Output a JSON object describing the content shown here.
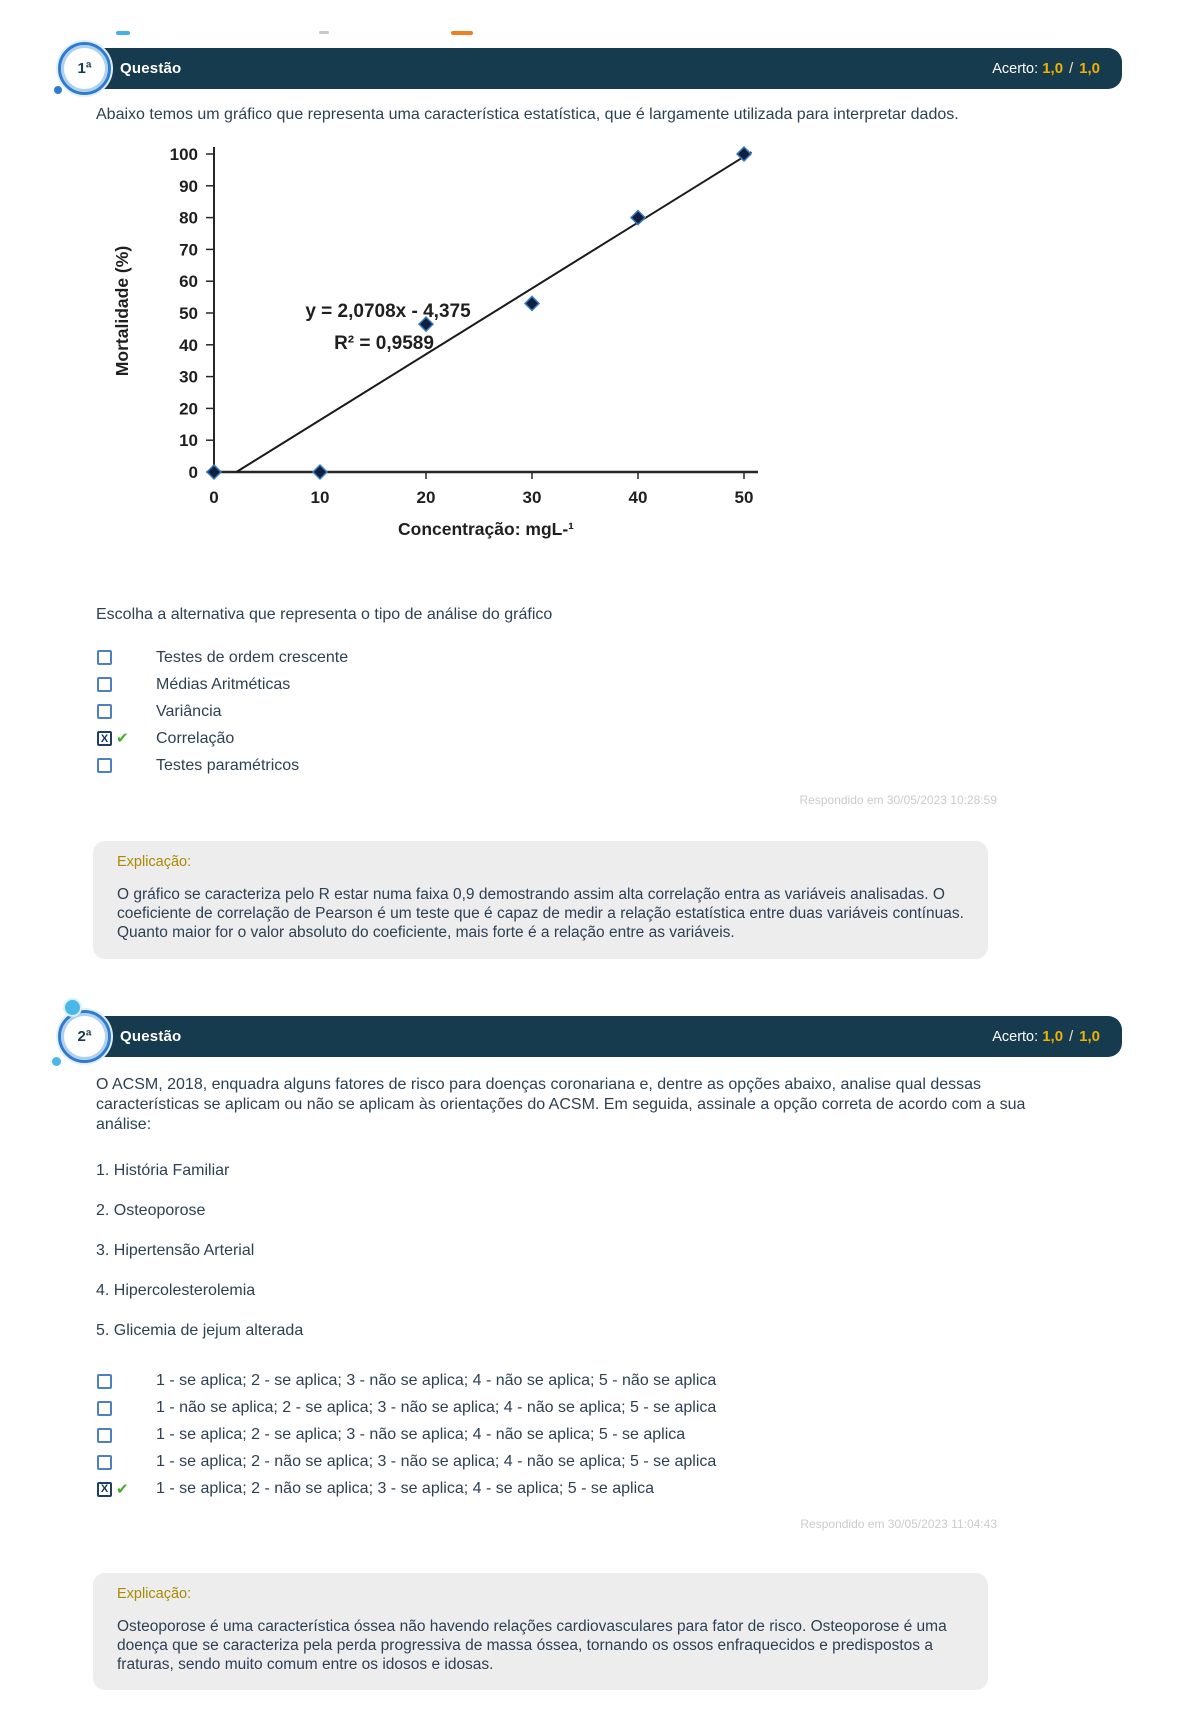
{
  "icons": {
    "x_mark": "X",
    "check_mark": "✔"
  },
  "questions": {
    "q1": {
      "badge": "1ª",
      "title": "Questão",
      "score_label": "Acerto:",
      "score_left": "1,0",
      "score_sep": "/",
      "score_right": "1,0",
      "prompt": "Abaixo temos um gráfico que representa uma característica estatística, que é largamente utilizada para interpretar dados.",
      "choose_label": "Escolha a alternativa que representa o tipo de análise do gráfico",
      "options": [
        {
          "label": "Testes de ordem crescente",
          "selected": false
        },
        {
          "label": "Médias Aritméticas",
          "selected": false
        },
        {
          "label": "Variância",
          "selected": false
        },
        {
          "label": "Correlação",
          "selected": true
        },
        {
          "label": "Testes paramétricos",
          "selected": false
        }
      ],
      "answered": "Respondido em 30/05/2023 10:28:59",
      "explanation_title": "Explicação:",
      "explanation_body": "O gráfico se caracteriza pelo R estar numa faixa 0,9 demostrando assim alta correlação entra as variáveis analisadas. O coeficiente de correlação de Pearson é um teste que é capaz de medir a relação estatística entre duas variáveis contínuas. Quanto maior for o valor absoluto do coeficiente, mais forte é a relação entre as variáveis."
    },
    "q2": {
      "badge": "2ª",
      "title": "Questão",
      "score_label": "Acerto:",
      "score_left": "1,0",
      "score_sep": "/",
      "score_right": "1,0",
      "prompt": "O ACSM, 2018, enquadra alguns fatores de risco para doenças coronariana e, dentre as opções abaixo, analise qual dessas características se aplicam ou não se aplicam às orientações do ACSM. Em seguida, assinale a opção correta de acordo com a sua análise:",
      "list_items": [
        "1. História Familiar",
        "2. Osteoporose",
        "3. Hipertensão Arterial",
        "4. Hipercolesterolemia",
        "5. Glicemia de jejum alterada"
      ],
      "options": [
        {
          "label": "1 - se aplica; 2 - se aplica; 3 - não se aplica; 4 - não se aplica; 5 - não se aplica",
          "selected": false
        },
        {
          "label": "1 - não se aplica; 2 - se aplica; 3 - não se aplica; 4 - não se aplica; 5 - se aplica",
          "selected": false
        },
        {
          "label": "1 - se aplica; 2 - se aplica; 3 - não se aplica; 4 - não se aplica; 5 - se aplica",
          "selected": false
        },
        {
          "label": "1 - se aplica; 2 - não se aplica; 3 - não se aplica; 4 - não se aplica; 5 - se aplica",
          "selected": false
        },
        {
          "label": "1 - se aplica; 2 - não se aplica; 3 - se aplica; 4 - se aplica; 5 - se aplica",
          "selected": true
        }
      ],
      "answered": "Respondido em 30/05/2023 11:04:43",
      "explanation_title": "Explicação:",
      "explanation_body": "Osteoporose é uma característica óssea não havendo relações cardiovasculares para fator de risco. Osteoporose é uma doença que se caracteriza pela perda progressiva de massa óssea, tornando os ossos enfraquecidos e predispostos a fraturas, sendo muito comum entre os idosos e idosas."
    }
  },
  "chart_data": {
    "type": "scatter",
    "x": [
      0,
      10,
      20,
      30,
      40,
      50
    ],
    "y": [
      0,
      0,
      46.5,
      53,
      80,
      100
    ],
    "xlabel": "Concentração: mgL-¹",
    "ylabel": "Mortalidade (%)",
    "xlim": [
      0,
      50
    ],
    "ylim": [
      0,
      100
    ],
    "xticks": [
      0,
      10,
      20,
      30,
      40,
      50
    ],
    "yticks": [
      0,
      10,
      20,
      30,
      40,
      50,
      60,
      70,
      80,
      90,
      100
    ],
    "grid": false,
    "marker": "diamond",
    "marker_fill": "#0e1f40",
    "marker_stroke": "#3a7abf",
    "line_color": "#1a1a1a",
    "trendline": {
      "slope": 2.0708,
      "intercept": -4.375,
      "equation_label": "y = 2,0708x - 4,375",
      "r2_label": "R² = 0,9589"
    },
    "legend": null,
    "annotation_position": "left-center of plot area"
  }
}
